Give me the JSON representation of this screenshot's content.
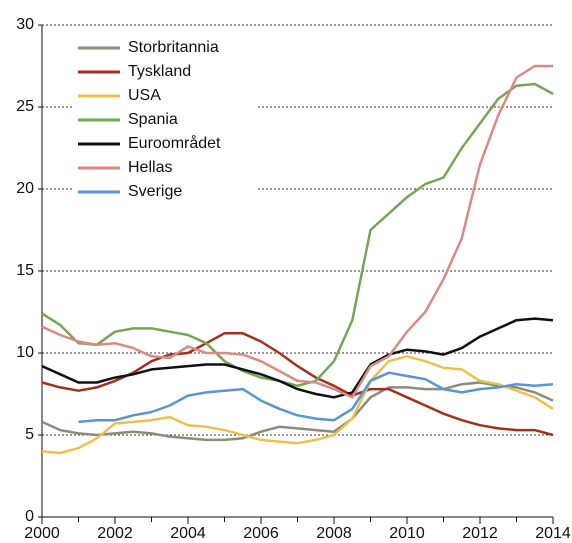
{
  "chart_data": {
    "type": "line",
    "x": [
      2000,
      2000.5,
      2001,
      2001.5,
      2002,
      2002.5,
      2003,
      2003.5,
      2004,
      2004.5,
      2005,
      2005.5,
      2006,
      2006.5,
      2007,
      2007.5,
      2008,
      2008.5,
      2009,
      2009.5,
      2010,
      2010.5,
      2011,
      2011.5,
      2012,
      2012.5,
      2013,
      2013.5,
      2014
    ],
    "series": [
      {
        "name": "Storbritannia",
        "color": "#8c8c7c",
        "values": [
          5.8,
          5.3,
          5.1,
          5.0,
          5.1,
          5.2,
          5.1,
          4.9,
          4.8,
          4.7,
          4.7,
          4.8,
          5.2,
          5.5,
          5.4,
          5.3,
          5.2,
          6.0,
          7.3,
          7.9,
          7.9,
          7.8,
          7.8,
          8.1,
          8.2,
          8.0,
          7.9,
          7.6,
          7.1
        ]
      },
      {
        "name": "Tyskland",
        "color": "#a3301e",
        "values": [
          8.2,
          7.9,
          7.7,
          7.9,
          8.3,
          8.8,
          9.5,
          9.9,
          10.0,
          10.6,
          11.2,
          11.2,
          10.7,
          10.0,
          9.2,
          8.5,
          8.0,
          7.4,
          7.8,
          7.8,
          7.3,
          6.8,
          6.3,
          5.9,
          5.6,
          5.4,
          5.3,
          5.3,
          5.0
        ]
      },
      {
        "name": "USA",
        "color": "#e9c24c",
        "values": [
          4.0,
          3.9,
          4.2,
          4.8,
          5.7,
          5.8,
          5.9,
          6.1,
          5.6,
          5.5,
          5.3,
          5.0,
          4.7,
          4.6,
          4.5,
          4.7,
          5.0,
          6.0,
          8.3,
          9.5,
          9.8,
          9.5,
          9.1,
          9.0,
          8.3,
          8.1,
          7.7,
          7.3,
          6.6
        ]
      },
      {
        "name": "Spania",
        "color": "#76a55a",
        "values": [
          12.4,
          11.7,
          10.6,
          10.5,
          11.3,
          11.5,
          11.5,
          11.3,
          11.1,
          10.6,
          9.5,
          8.9,
          8.5,
          8.3,
          8.0,
          8.3,
          9.5,
          12.0,
          17.5,
          18.5,
          19.5,
          20.3,
          20.7,
          22.5,
          24.0,
          25.5,
          26.3,
          26.4,
          25.8
        ]
      },
      {
        "name": "Euroområdet",
        "color": "#111111",
        "values": [
          9.2,
          8.7,
          8.2,
          8.2,
          8.5,
          8.7,
          9.0,
          9.1,
          9.2,
          9.3,
          9.3,
          9.0,
          8.7,
          8.3,
          7.8,
          7.5,
          7.3,
          7.6,
          9.3,
          9.9,
          10.2,
          10.1,
          9.9,
          10.3,
          11.0,
          11.5,
          12.0,
          12.1,
          12.0
        ]
      },
      {
        "name": "Hellas",
        "color": "#d98a84",
        "values": [
          11.6,
          11.1,
          10.7,
          10.5,
          10.6,
          10.3,
          9.8,
          9.7,
          10.4,
          10.0,
          10.0,
          9.9,
          9.5,
          8.9,
          8.3,
          8.2,
          7.8,
          7.3,
          9.2,
          9.8,
          11.3,
          12.5,
          14.5,
          17.0,
          21.5,
          24.5,
          26.8,
          27.5,
          27.5
        ]
      },
      {
        "name": "Sverige",
        "color": "#5b95cf",
        "values": [
          null,
          null,
          5.8,
          5.9,
          5.9,
          6.2,
          6.4,
          6.8,
          7.4,
          7.6,
          7.7,
          7.8,
          7.1,
          6.6,
          6.2,
          6.0,
          5.9,
          6.6,
          8.3,
          8.8,
          8.6,
          8.4,
          7.8,
          7.6,
          7.8,
          7.9,
          8.1,
          8.0,
          8.1
        ]
      }
    ],
    "xlim": [
      2000,
      2014
    ],
    "xticks": [
      2000,
      2002,
      2004,
      2006,
      2008,
      2010,
      2012,
      2014
    ],
    "xminorticks": [
      2001,
      2003,
      2005,
      2007,
      2009,
      2011,
      2013
    ],
    "ylim": [
      0,
      30
    ],
    "yticks": [
      0,
      5,
      10,
      15,
      20,
      25,
      30
    ],
    "grid": true,
    "legend": "upper left"
  }
}
